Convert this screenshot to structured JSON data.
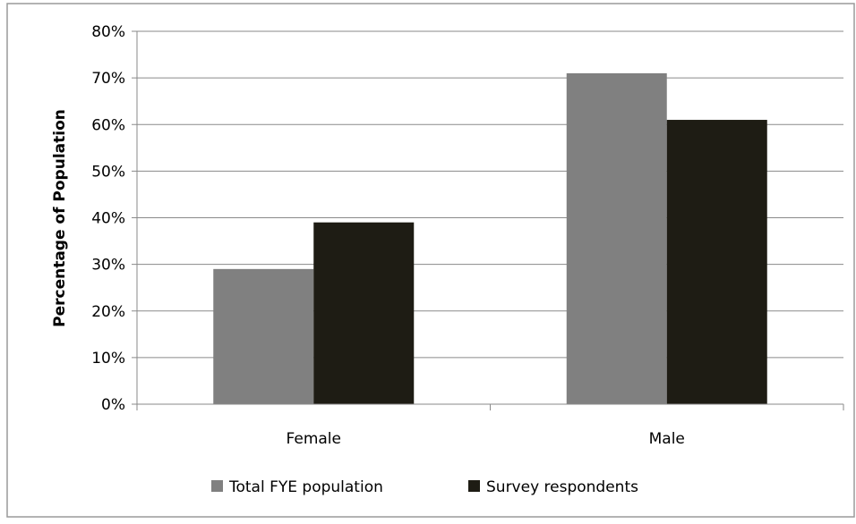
{
  "chart_data": {
    "type": "bar",
    "title": "",
    "xlabel": "",
    "ylabel": "Percentage of Population",
    "categories": [
      "Female",
      "Male"
    ],
    "series": [
      {
        "name": "Total FYE population",
        "values": [
          29,
          71
        ],
        "color": "#808080"
      },
      {
        "name": "Survey respondents",
        "values": [
          39,
          61
        ],
        "color": "#1e1c14"
      }
    ],
    "ylim": [
      0,
      80
    ],
    "yticks": [
      0,
      10,
      20,
      30,
      40,
      50,
      60,
      70,
      80
    ],
    "ytick_labels": [
      "0%",
      "10%",
      "20%",
      "30%",
      "40%",
      "50%",
      "60%",
      "70%",
      "80%"
    ],
    "grid": true,
    "legend_position": "bottom"
  }
}
